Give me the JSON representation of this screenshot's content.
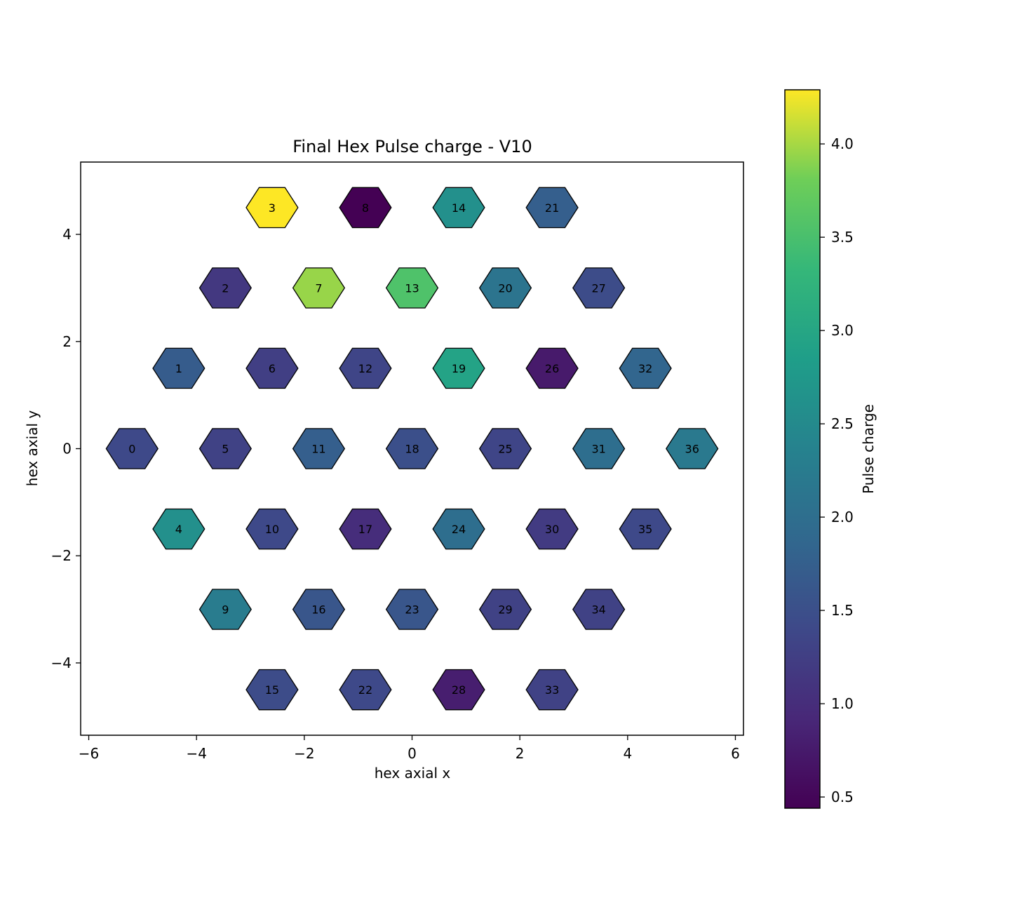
{
  "chart_data": {
    "type": "heatmap",
    "title": "Final Hex Pulse charge - V10",
    "xlabel": "hex axial x",
    "ylabel": "hex axial y",
    "xlim": [
      -6.15,
      6.15
    ],
    "ylim": [
      -5.35,
      5.35
    ],
    "xticks": [
      -6,
      -4,
      -2,
      0,
      2,
      4,
      6
    ],
    "xtick_labels": [
      "−6",
      "−4",
      "−2",
      "0",
      "2",
      "4",
      "6"
    ],
    "yticks": [
      -4,
      -2,
      0,
      2,
      4
    ],
    "ytick_labels": [
      "−4",
      "−2",
      "0",
      "2",
      "4"
    ],
    "colorbar": {
      "label": "Pulse charge",
      "range": [
        0.44,
        4.29
      ],
      "ticks": [
        0.5,
        1.0,
        1.5,
        2.0,
        2.5,
        3.0,
        3.5,
        4.0
      ],
      "tick_labels": [
        "0.5",
        "1.0",
        "1.5",
        "2.0",
        "2.5",
        "3.0",
        "3.5",
        "4.0"
      ],
      "colormap": "viridis"
    },
    "hex_radius": 0.48,
    "cells": [
      {
        "id": "0",
        "x": -5.196,
        "y": 0.0,
        "value": 1.4
      },
      {
        "id": "1",
        "x": -4.33,
        "y": 1.5,
        "value": 1.7
      },
      {
        "id": "2",
        "x": -3.464,
        "y": 3.0,
        "value": 1.15
      },
      {
        "id": "3",
        "x": -2.598,
        "y": 4.5,
        "value": 4.29
      },
      {
        "id": "4",
        "x": -4.33,
        "y": -1.5,
        "value": 2.6
      },
      {
        "id": "5",
        "x": -3.464,
        "y": 0.0,
        "value": 1.3
      },
      {
        "id": "6",
        "x": -2.598,
        "y": 1.5,
        "value": 1.25
      },
      {
        "id": "7",
        "x": -1.732,
        "y": 3.0,
        "value": 3.95
      },
      {
        "id": "8",
        "x": -0.866,
        "y": 4.5,
        "value": 0.44
      },
      {
        "id": "9",
        "x": -3.464,
        "y": -3.0,
        "value": 2.25
      },
      {
        "id": "10",
        "x": -2.598,
        "y": -1.5,
        "value": 1.4
      },
      {
        "id": "11",
        "x": -1.732,
        "y": 0.0,
        "value": 1.75
      },
      {
        "id": "12",
        "x": -0.866,
        "y": 1.5,
        "value": 1.35
      },
      {
        "id": "13",
        "x": 0.0,
        "y": 3.0,
        "value": 3.55
      },
      {
        "id": "14",
        "x": 0.866,
        "y": 4.5,
        "value": 2.6
      },
      {
        "id": "15",
        "x": -2.598,
        "y": -4.5,
        "value": 1.45
      },
      {
        "id": "16",
        "x": -1.732,
        "y": -3.0,
        "value": 1.6
      },
      {
        "id": "17",
        "x": -0.866,
        "y": -1.5,
        "value": 1.0
      },
      {
        "id": "18",
        "x": 0.0,
        "y": 0.0,
        "value": 1.5
      },
      {
        "id": "19",
        "x": 0.866,
        "y": 1.5,
        "value": 2.95
      },
      {
        "id": "20",
        "x": 1.732,
        "y": 3.0,
        "value": 2.1
      },
      {
        "id": "21",
        "x": 2.598,
        "y": 4.5,
        "value": 1.75
      },
      {
        "id": "22",
        "x": -0.866,
        "y": -4.5,
        "value": 1.4
      },
      {
        "id": "23",
        "x": 0.0,
        "y": -3.0,
        "value": 1.6
      },
      {
        "id": "24",
        "x": 0.866,
        "y": -1.5,
        "value": 2.0
      },
      {
        "id": "25",
        "x": 1.732,
        "y": 0.0,
        "value": 1.35
      },
      {
        "id": "26",
        "x": 2.598,
        "y": 1.5,
        "value": 0.75
      },
      {
        "id": "27",
        "x": 3.464,
        "y": 3.0,
        "value": 1.45
      },
      {
        "id": "28",
        "x": 0.866,
        "y": -4.5,
        "value": 0.8
      },
      {
        "id": "29",
        "x": 1.732,
        "y": -3.0,
        "value": 1.3
      },
      {
        "id": "30",
        "x": 2.598,
        "y": -1.5,
        "value": 1.2
      },
      {
        "id": "31",
        "x": 3.464,
        "y": 0.0,
        "value": 2.0
      },
      {
        "id": "32",
        "x": 4.33,
        "y": 1.5,
        "value": 1.85
      },
      {
        "id": "33",
        "x": 2.598,
        "y": -4.5,
        "value": 1.3
      },
      {
        "id": "34",
        "x": 3.464,
        "y": -3.0,
        "value": 1.3
      },
      {
        "id": "35",
        "x": 4.33,
        "y": -1.5,
        "value": 1.4
      },
      {
        "id": "36",
        "x": 5.196,
        "y": 0.0,
        "value": 2.2
      }
    ]
  }
}
